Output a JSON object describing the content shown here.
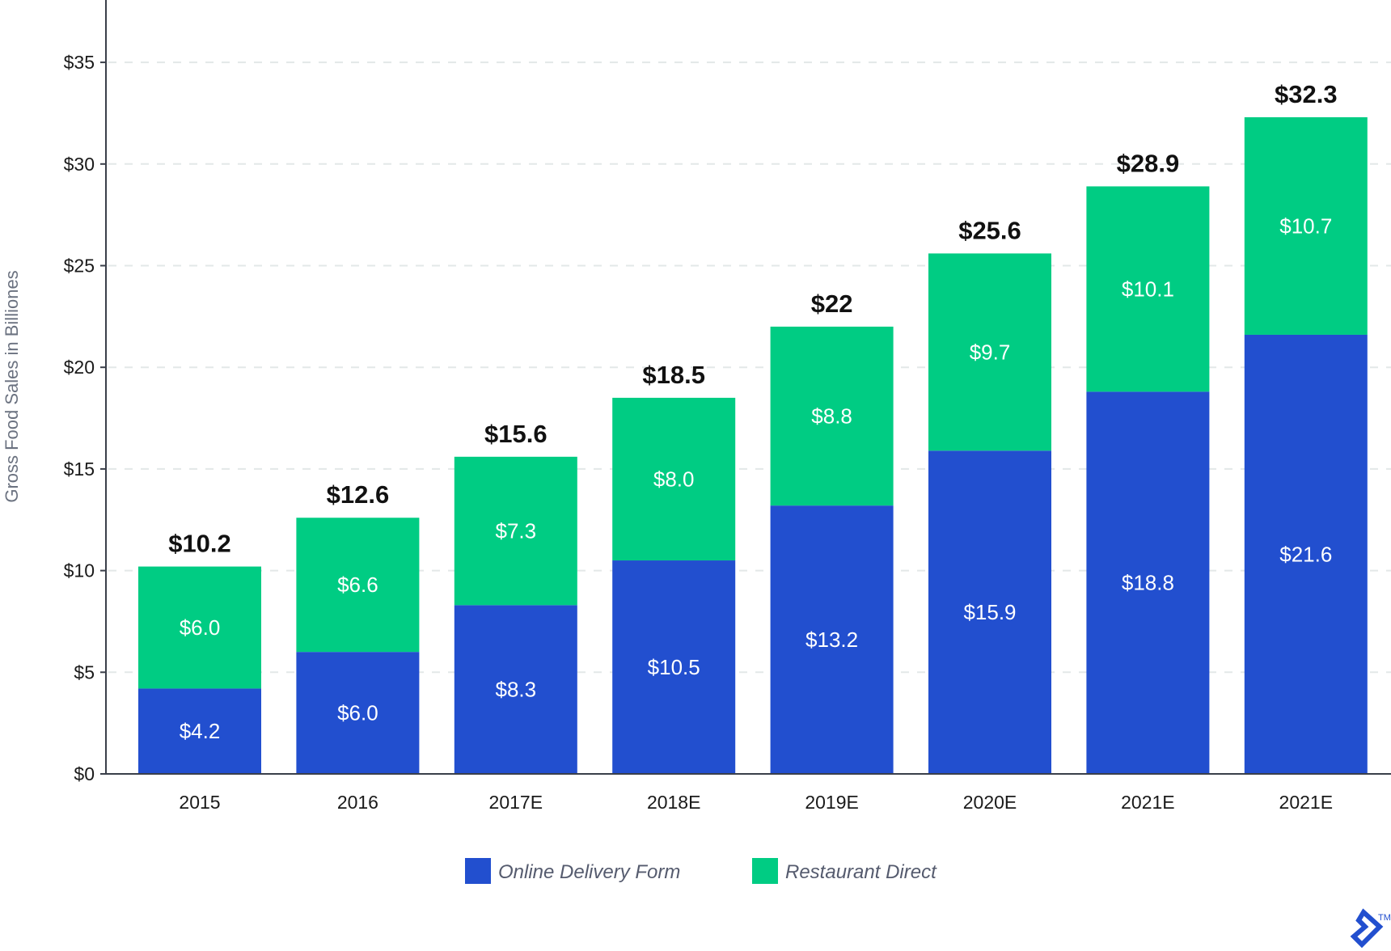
{
  "chart_data": {
    "type": "bar",
    "stacked": true,
    "title": "",
    "xlabel": "",
    "ylabel": "Gross Food Sales in Billiones",
    "ylim": [
      0,
      38
    ],
    "yticks": [
      0,
      5,
      10,
      15,
      20,
      25,
      30,
      35
    ],
    "ytick_labels": [
      "$0",
      "$5",
      "$10",
      "$15",
      "$20",
      "$25",
      "$30",
      "$35"
    ],
    "grid": "horizontal dashed",
    "legend_position": "bottom",
    "categories": [
      "2015",
      "2016",
      "2017E",
      "2018E",
      "2019E",
      "2020E",
      "2021E",
      "2021E"
    ],
    "series": [
      {
        "name": "Online Delivery Form",
        "color": "#224fcf",
        "values": [
          4.2,
          6.0,
          8.3,
          10.5,
          13.2,
          15.9,
          18.8,
          21.6
        ],
        "labels": [
          "$4.2",
          "$6.0",
          "$8.3",
          "$10.5",
          "$13.2",
          "$15.9",
          "$18.8",
          "$21.6"
        ]
      },
      {
        "name": "Restaurant Direct",
        "color": "#00cc83",
        "values": [
          6.0,
          6.6,
          7.3,
          8.0,
          8.8,
          9.7,
          10.1,
          10.7
        ],
        "labels": [
          "$6.0",
          "$6.6",
          "$7.3",
          "$8.0",
          "$8.8",
          "$9.7",
          "$10.1",
          "$10.7"
        ]
      }
    ],
    "totals": [
      10.2,
      12.6,
      15.6,
      18.5,
      22,
      25.6,
      28.9,
      32.3
    ],
    "total_labels": [
      "$10.2",
      "$12.6",
      "$15.6",
      "$18.5",
      "$22",
      "$25.6",
      "$28.9",
      "$32.3"
    ]
  },
  "logo": {
    "name": "toptal-logo",
    "text": "TM",
    "color": "#224fcf"
  }
}
